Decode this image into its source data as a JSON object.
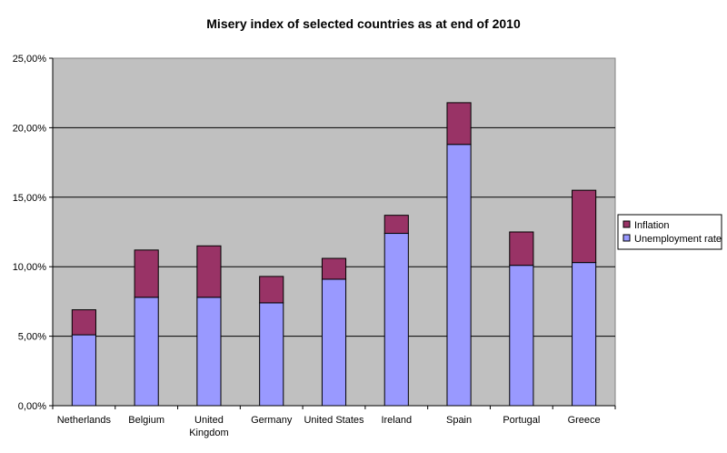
{
  "chart_data": {
    "type": "bar",
    "stacked": true,
    "title": "Misery index of selected countries as at end of 2010",
    "xlabel": "",
    "ylabel": "",
    "ylim": [
      0,
      25
    ],
    "yticks": [
      "0,00%",
      "5,00%",
      "10,00%",
      "15,00%",
      "20,00%",
      "25,00%"
    ],
    "categories": [
      "Netherlands",
      "Belgium",
      "United Kingdom",
      "Germany",
      "United States",
      "Ireland",
      "Spain",
      "Portugal",
      "Greece"
    ],
    "category_lines": [
      [
        "Netherlands"
      ],
      [
        "Belgium"
      ],
      [
        "United",
        "Kingdom"
      ],
      [
        "Germany"
      ],
      [
        "United States"
      ],
      [
        "Ireland"
      ],
      [
        "Spain"
      ],
      [
        "Portugal"
      ],
      [
        "Greece"
      ]
    ],
    "series": [
      {
        "name": "Unemployment rate",
        "color": "#9999ff",
        "values": [
          5.1,
          7.8,
          7.8,
          7.4,
          9.1,
          12.4,
          18.8,
          10.1,
          10.3
        ]
      },
      {
        "name": "Inflation",
        "color": "#993366",
        "values": [
          1.8,
          3.4,
          3.7,
          1.9,
          1.5,
          1.3,
          3.0,
          2.4,
          5.2
        ]
      }
    ],
    "legend": [
      "Inflation",
      "Unemployment rate"
    ],
    "legend_position": "right",
    "grid": true,
    "plot_background": "#c0c0c0"
  }
}
